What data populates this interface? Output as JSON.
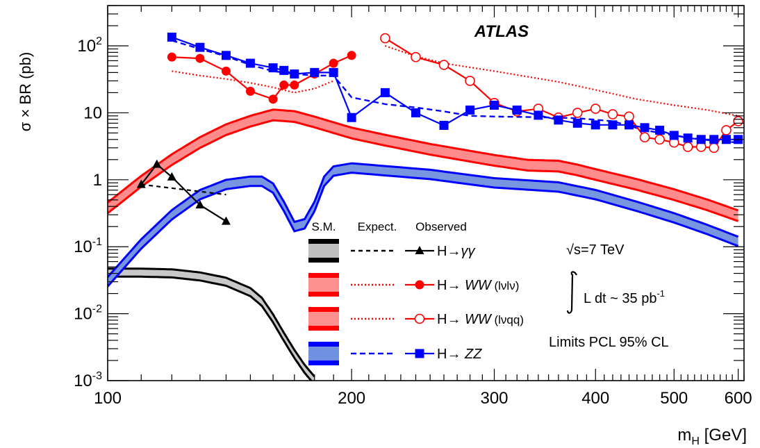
{
  "chart_data": {
    "type": "line",
    "title": "ATLAS",
    "xlabel": "m",
    "xlabel_sub": "H",
    "xlabel_unit": " [GeV]",
    "ylabel": "σ × BR (pb)",
    "x_scale": "log",
    "y_scale": "log",
    "xlim": [
      100,
      610
    ],
    "ylim": [
      0.001,
      400
    ],
    "x_ticks": [
      100,
      200,
      300,
      400,
      500,
      600
    ],
    "x_tick_labels": [
      "100",
      "200",
      "300",
      "400",
      "500",
      "600"
    ],
    "y_ticks": [
      {
        "value": 0.001,
        "base": "10",
        "exp": "-3"
      },
      {
        "value": 0.01,
        "base": "10",
        "exp": "-2"
      },
      {
        "value": 0.1,
        "base": "10",
        "exp": "-1"
      },
      {
        "value": 1,
        "base": "1",
        "exp": ""
      },
      {
        "value": 10,
        "base": "10",
        "exp": ""
      },
      {
        "value": 100,
        "base": "10",
        "exp": "2"
      }
    ],
    "colors": {
      "black": "#000000",
      "red": "#ff0000",
      "red_band": "#ff8080",
      "blue": "#0000ff",
      "blue_band": "#6f90e0",
      "grey_band": "#c0c0c0"
    },
    "legend": {
      "headers": [
        "S.M.",
        "Expect.",
        "Observed"
      ],
      "entries": [
        {
          "label_prefix": "H→",
          "label_italic": "γγ",
          "label_suffix": "",
          "color": "#000000",
          "band": "#c0c0c0",
          "marker": "triangle",
          "dash": "6,5"
        },
        {
          "label_prefix": "H→ ",
          "label_italic": "WW",
          "label_suffix": " (lνlν)",
          "color": "#ff0000",
          "band": "#ff9090",
          "marker": "circle",
          "dash": "2,3"
        },
        {
          "label_prefix": "H→ ",
          "label_italic": "WW",
          "label_suffix": " (lνqq)",
          "color": "#ff0000",
          "band": "#ff9090",
          "marker": "open-circle",
          "dash": "2,3"
        },
        {
          "label_prefix": "H→ ",
          "label_italic": "ZZ",
          "label_suffix": "",
          "color": "#0000ff",
          "band": "#7090e0",
          "marker": "square",
          "dash": "8,5"
        }
      ]
    },
    "annotations": {
      "energy": "√s=7 TeV",
      "lumi_text": "L dt ~ 35 pb",
      "lumi_exp": "-1",
      "limits": "Limits PCL 95% CL"
    },
    "sm_bands": [
      {
        "name": "H→γγ",
        "x": [
          100,
          110,
          120,
          130,
          140,
          150,
          155,
          160,
          165,
          170,
          175,
          180
        ],
        "center": [
          0.041,
          0.041,
          0.04,
          0.036,
          0.03,
          0.021,
          0.015,
          0.0085,
          0.0045,
          0.0025,
          0.0015,
          0.001
        ],
        "width": 0.12
      },
      {
        "name": "H→WW",
        "x": [
          100,
          110,
          120,
          130,
          140,
          150,
          160,
          170,
          180,
          190,
          200,
          220,
          250,
          280,
          300,
          330,
          360,
          380,
          400,
          450,
          500,
          550,
          600
        ],
        "center": [
          0.38,
          0.95,
          2.0,
          3.6,
          5.6,
          7.5,
          9.3,
          8.8,
          7.3,
          6.0,
          5.0,
          3.9,
          2.85,
          2.25,
          1.95,
          1.65,
          1.6,
          1.4,
          1.2,
          0.85,
          0.6,
          0.42,
          0.29
        ],
        "width": 0.16
      },
      {
        "name": "H→ZZ",
        "x": [
          100,
          110,
          120,
          130,
          140,
          150,
          155,
          160,
          165,
          170,
          175,
          180,
          185,
          190,
          200,
          250,
          300,
          360,
          400,
          450,
          500,
          550,
          600
        ],
        "center": [
          0.03,
          0.11,
          0.3,
          0.6,
          0.85,
          0.95,
          0.95,
          0.75,
          0.4,
          0.2,
          0.22,
          0.4,
          0.95,
          1.35,
          1.5,
          1.2,
          0.9,
          0.78,
          0.6,
          0.4,
          0.27,
          0.18,
          0.12
        ],
        "width": 0.14
      }
    ],
    "expected": [
      {
        "name": "H→γγ",
        "x": [
          110,
          140
        ],
        "y": [
          0.85,
          0.6
        ]
      },
      {
        "name": "H→WW (lνlν)",
        "x": [
          120,
          130,
          140,
          150,
          160,
          170,
          180,
          190
        ],
        "y": [
          42,
          36,
          32,
          28,
          24,
          20,
          23,
          30
        ]
      },
      {
        "name": "H→WW (lνqq)",
        "x": [
          220,
          240,
          260,
          300,
          360,
          400,
          450,
          500,
          550,
          600
        ],
        "y": [
          100,
          70,
          55,
          42,
          29,
          22,
          16,
          13,
          11,
          9
        ]
      },
      {
        "name": "H→ZZ",
        "x": [
          120,
          130,
          140,
          150,
          160,
          170,
          180,
          190,
          200,
          220,
          240,
          260,
          280,
          300,
          340,
          380,
          420,
          460,
          500,
          540,
          580,
          600
        ],
        "y": [
          120,
          90,
          70,
          52,
          42,
          38,
          36,
          36,
          17,
          13.5,
          12,
          10.5,
          9,
          8.8,
          8.6,
          8.3,
          7.5,
          5.5,
          4.6,
          4.0,
          3.7,
          3.6
        ]
      }
    ],
    "observed": [
      {
        "name": "H→γγ",
        "x": [
          110,
          115,
          120,
          130,
          140
        ],
        "y": [
          0.85,
          1.7,
          1.1,
          0.42,
          0.24
        ]
      },
      {
        "name": "H→WW (lνlν)",
        "x": [
          120,
          130,
          140,
          150,
          160,
          165,
          170,
          180,
          190,
          200
        ],
        "y": [
          68,
          65,
          42,
          21,
          16,
          26,
          26,
          38,
          55,
          72
        ]
      },
      {
        "name": "H→WW (lνqq)",
        "x": [
          220,
          240,
          260,
          280,
          300,
          320,
          340,
          360,
          380,
          400,
          420,
          440,
          460,
          480,
          500,
          520,
          540,
          560,
          580,
          600
        ],
        "y": [
          130,
          68,
          52,
          30,
          14,
          10.5,
          11.5,
          8.5,
          10,
          11.5,
          9.5,
          8.8,
          4.3,
          4.0,
          3.6,
          3.1,
          3.1,
          3.0,
          5.5,
          7.5
        ]
      },
      {
        "name": "H→ZZ",
        "x": [
          120,
          130,
          140,
          150,
          160,
          165,
          170,
          180,
          190,
          200,
          220,
          240,
          260,
          280,
          300,
          320,
          340,
          360,
          380,
          400,
          420,
          440,
          460,
          480,
          500,
          520,
          540,
          560,
          580,
          600
        ],
        "y": [
          135,
          95,
          72,
          55,
          47,
          43,
          38,
          40,
          40,
          8.5,
          20,
          10,
          6.5,
          11,
          13,
          11,
          9.2,
          7.8,
          7.0,
          6.6,
          6.6,
          6.6,
          6.0,
          5.5,
          4.6,
          4.2,
          4.0,
          4.0,
          4.0,
          4.0
        ]
      }
    ]
  }
}
